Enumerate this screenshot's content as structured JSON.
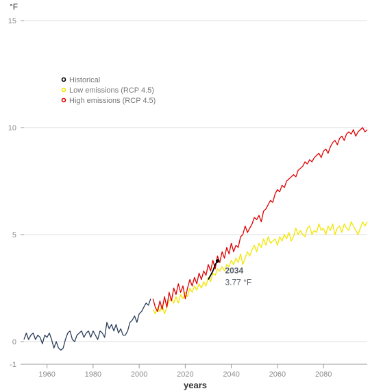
{
  "chart_data": {
    "type": "line",
    "title": "",
    "y_unit": "°F",
    "xlabel": "years",
    "ylabel": "",
    "xlim": [
      1950,
      2099
    ],
    "ylim": [
      -1,
      15
    ],
    "x_ticks": [
      "1960",
      "1980",
      "2000",
      "2020",
      "2040",
      "2060",
      "2080"
    ],
    "y_ticks": [
      "15",
      "10",
      "5",
      "0",
      "-1"
    ],
    "grid": "horizontal",
    "legend_position": "upper-left",
    "colors": {
      "observed": "#2c3e5a",
      "historical": "#000000",
      "low": "#f2e600",
      "high": "#e00000",
      "grid": "#dddddd",
      "axis": "#999999"
    },
    "legend": [
      {
        "label": "Historical",
        "key": "historical"
      },
      {
        "label": "Low emissions (RCP 4.5)",
        "key": "low"
      },
      {
        "label": "High emissions (RCP 4.5)",
        "key": "high"
      }
    ],
    "series": [
      {
        "key": "observed",
        "x": [
          1950,
          1951,
          1952,
          1953,
          1954,
          1955,
          1956,
          1957,
          1958,
          1959,
          1960,
          1961,
          1962,
          1963,
          1964,
          1965,
          1966,
          1967,
          1968,
          1969,
          1970,
          1971,
          1972,
          1973,
          1974,
          1975,
          1976,
          1977,
          1978,
          1979,
          1980,
          1981,
          1982,
          1983,
          1984,
          1985,
          1986,
          1987,
          1988,
          1989,
          1990,
          1991,
          1992,
          1993,
          1994,
          1995,
          1996,
          1997,
          1998,
          1999,
          2000,
          2001,
          2002,
          2003,
          2004,
          2005
        ],
        "y": [
          0.1,
          0.4,
          0.1,
          0.3,
          0.4,
          0.1,
          0.3,
          0.2,
          -0.1,
          0.3,
          0.2,
          0.4,
          0.1,
          -0.3,
          0.0,
          -0.3,
          -0.4,
          -0.3,
          0.1,
          0.4,
          0.5,
          0.1,
          0.0,
          0.3,
          0.4,
          0.5,
          0.2,
          0.4,
          0.5,
          0.2,
          0.5,
          0.3,
          0.1,
          0.5,
          0.4,
          0.2,
          0.9,
          0.6,
          0.8,
          0.5,
          0.8,
          0.4,
          0.6,
          0.3,
          0.3,
          0.5,
          0.9,
          1.0,
          1.2,
          0.9,
          1.3,
          1.4,
          1.6,
          1.8,
          1.7,
          2.0
        ]
      },
      {
        "key": "low",
        "x": [
          2006,
          2007,
          2008,
          2009,
          2010,
          2011,
          2012,
          2013,
          2014,
          2015,
          2016,
          2017,
          2018,
          2019,
          2020,
          2021,
          2022,
          2023,
          2024,
          2025,
          2026,
          2027,
          2028,
          2029,
          2030,
          2031,
          2032,
          2033,
          2034,
          2035,
          2036,
          2037,
          2038,
          2039,
          2040,
          2041,
          2042,
          2043,
          2044,
          2045,
          2046,
          2047,
          2048,
          2049,
          2050,
          2051,
          2052,
          2053,
          2054,
          2055,
          2056,
          2057,
          2058,
          2059,
          2060,
          2061,
          2062,
          2063,
          2064,
          2065,
          2066,
          2067,
          2068,
          2069,
          2070,
          2071,
          2072,
          2073,
          2074,
          2075,
          2076,
          2077,
          2078,
          2079,
          2080,
          2081,
          2082,
          2083,
          2084,
          2085,
          2086,
          2087,
          2088,
          2089,
          2090,
          2091,
          2092,
          2093,
          2094,
          2095,
          2096,
          2097,
          2098,
          2099
        ],
        "y": [
          1.5,
          1.3,
          1.6,
          1.4,
          1.7,
          1.3,
          1.6,
          1.9,
          2.0,
          1.8,
          2.1,
          1.8,
          2.2,
          2.0,
          2.3,
          2.1,
          2.5,
          2.3,
          2.6,
          2.4,
          2.7,
          2.5,
          2.8,
          2.6,
          3.0,
          2.8,
          3.2,
          3.1,
          3.4,
          3.3,
          3.5,
          3.3,
          3.6,
          3.5,
          3.8,
          3.6,
          3.9,
          3.7,
          4.1,
          3.6,
          3.9,
          4.2,
          4.0,
          4.3,
          4.5,
          4.2,
          4.6,
          4.4,
          4.8,
          4.5,
          4.9,
          4.6,
          4.7,
          4.8,
          4.5,
          4.9,
          4.7,
          5.0,
          4.8,
          5.1,
          4.7,
          4.9,
          5.3,
          5.0,
          5.2,
          5.0,
          4.9,
          5.3,
          5.4,
          5.0,
          5.2,
          5.1,
          5.5,
          5.2,
          5.3,
          5.0,
          5.4,
          5.2,
          5.5,
          5.0,
          5.3,
          5.4,
          5.1,
          5.5,
          5.3,
          5.2,
          5.6,
          5.4,
          5.2,
          5.0,
          5.3,
          5.6,
          5.4,
          5.6
        ]
      },
      {
        "key": "high",
        "x": [
          2006,
          2007,
          2008,
          2009,
          2010,
          2011,
          2012,
          2013,
          2014,
          2015,
          2016,
          2017,
          2018,
          2019,
          2020,
          2021,
          2022,
          2023,
          2024,
          2025,
          2026,
          2027,
          2028,
          2029,
          2030,
          2031,
          2032,
          2033,
          2034,
          2035,
          2036,
          2037,
          2038,
          2039,
          2040,
          2041,
          2042,
          2043,
          2044,
          2045,
          2046,
          2047,
          2048,
          2049,
          2050,
          2051,
          2052,
          2053,
          2054,
          2055,
          2056,
          2057,
          2058,
          2059,
          2060,
          2061,
          2062,
          2063,
          2064,
          2065,
          2066,
          2067,
          2068,
          2069,
          2070,
          2071,
          2072,
          2073,
          2074,
          2075,
          2076,
          2077,
          2078,
          2079,
          2080,
          2081,
          2082,
          2083,
          2084,
          2085,
          2086,
          2087,
          2088,
          2089,
          2090,
          2091,
          2092,
          2093,
          2094,
          2095,
          2096,
          2097,
          2098,
          2099
        ],
        "y": [
          2.0,
          1.6,
          1.4,
          1.9,
          1.5,
          2.1,
          1.6,
          2.3,
          1.9,
          2.5,
          2.2,
          2.7,
          2.3,
          2.6,
          2.0,
          2.5,
          2.9,
          2.6,
          3.0,
          2.7,
          3.2,
          2.9,
          3.3,
          3.1,
          3.6,
          3.3,
          3.8,
          3.4,
          4.0,
          3.7,
          4.2,
          3.9,
          4.4,
          4.1,
          4.6,
          4.2,
          4.5,
          4.4,
          4.9,
          5.0,
          5.4,
          5.1,
          5.3,
          5.5,
          5.8,
          5.7,
          5.9,
          5.6,
          6.1,
          6.2,
          6.4,
          6.6,
          6.5,
          6.9,
          7.1,
          7.0,
          7.3,
          7.2,
          7.5,
          7.6,
          7.7,
          7.8,
          7.7,
          8.0,
          8.1,
          8.2,
          8.4,
          8.3,
          8.5,
          8.4,
          8.6,
          8.7,
          8.8,
          8.6,
          8.9,
          9.0,
          8.8,
          9.1,
          9.3,
          9.4,
          9.2,
          9.5,
          9.6,
          9.4,
          9.7,
          9.8,
          9.7,
          9.9,
          9.6,
          9.8,
          9.9,
          10.0,
          9.8,
          9.9
        ]
      },
      {
        "key": "historical",
        "x": [
          2030,
          2031,
          2032,
          2033,
          2034
        ],
        "y": [
          2.9,
          3.1,
          3.3,
          3.6,
          3.77
        ]
      }
    ],
    "highlight": {
      "x": 2034,
      "y": 3.77,
      "year_label": "2034",
      "value_label": "3.77 °F"
    }
  }
}
